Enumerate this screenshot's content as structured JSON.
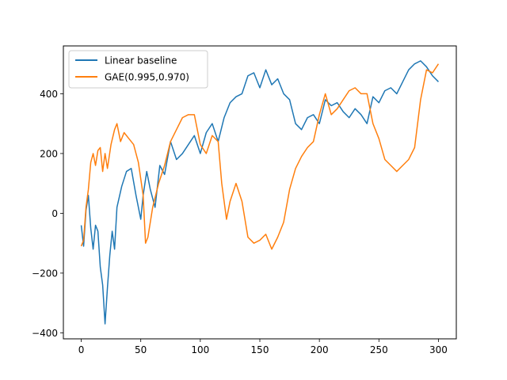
{
  "chart_data": {
    "type": "line",
    "title": "",
    "xlabel": "",
    "ylabel": "",
    "xlim": [
      -15,
      315
    ],
    "ylim": [
      -420,
      560
    ],
    "x_ticks": [
      0,
      50,
      100,
      150,
      200,
      250,
      300
    ],
    "y_ticks": [
      -400,
      -200,
      0,
      200,
      400
    ],
    "x_tick_labels": [
      "0",
      "50",
      "100",
      "150",
      "200",
      "250",
      "300"
    ],
    "y_tick_labels": [
      "−400",
      "−200",
      "0",
      "200",
      "400"
    ],
    "grid": false,
    "legend_position": "top-left",
    "series": [
      {
        "name": "Linear baseline",
        "color": "#1f77b4",
        "x": [
          0,
          2,
          4,
          6,
          8,
          10,
          12,
          14,
          16,
          18,
          20,
          22,
          24,
          26,
          28,
          30,
          34,
          38,
          42,
          46,
          50,
          52,
          55,
          58,
          62,
          66,
          70,
          75,
          80,
          85,
          90,
          95,
          100,
          105,
          110,
          115,
          120,
          125,
          130,
          135,
          140,
          145,
          150,
          155,
          160,
          165,
          170,
          175,
          180,
          185,
          190,
          195,
          200,
          205,
          210,
          215,
          220,
          225,
          230,
          235,
          240,
          245,
          250,
          255,
          260,
          265,
          270,
          275,
          280,
          285,
          290,
          295,
          300
        ],
        "y": [
          -40,
          -110,
          10,
          60,
          -50,
          -120,
          -40,
          -60,
          -180,
          -240,
          -370,
          -250,
          -140,
          -60,
          -120,
          20,
          90,
          140,
          150,
          60,
          -20,
          60,
          140,
          80,
          20,
          160,
          130,
          240,
          180,
          200,
          230,
          260,
          200,
          270,
          300,
          240,
          320,
          370,
          390,
          400,
          460,
          470,
          420,
          480,
          430,
          450,
          400,
          380,
          300,
          280,
          320,
          330,
          300,
          380,
          360,
          370,
          340,
          320,
          350,
          330,
          300,
          390,
          370,
          410,
          420,
          400,
          440,
          480,
          500,
          510,
          490,
          460,
          440
        ]
      },
      {
        "name": "GAE(0.995,0.970)",
        "color": "#ff7f0e",
        "x": [
          0,
          2,
          4,
          6,
          8,
          10,
          12,
          14,
          16,
          18,
          20,
          22,
          25,
          28,
          30,
          33,
          36,
          40,
          44,
          48,
          52,
          54,
          56,
          60,
          65,
          70,
          75,
          80,
          85,
          90,
          95,
          100,
          105,
          110,
          115,
          118,
          122,
          125,
          130,
          135,
          140,
          145,
          150,
          155,
          160,
          165,
          170,
          175,
          180,
          185,
          190,
          195,
          200,
          205,
          210,
          215,
          220,
          225,
          230,
          235,
          240,
          245,
          250,
          255,
          260,
          265,
          270,
          275,
          280,
          285,
          290,
          295,
          300
        ],
        "y": [
          -110,
          -90,
          20,
          80,
          170,
          200,
          160,
          210,
          220,
          140,
          200,
          150,
          230,
          280,
          300,
          240,
          270,
          250,
          230,
          170,
          60,
          -100,
          -80,
          20,
          100,
          160,
          240,
          280,
          320,
          330,
          330,
          230,
          200,
          260,
          240,
          100,
          -20,
          40,
          100,
          40,
          -80,
          -100,
          -90,
          -70,
          -120,
          -80,
          -30,
          80,
          150,
          190,
          220,
          240,
          330,
          400,
          330,
          350,
          380,
          410,
          420,
          400,
          400,
          300,
          250,
          180,
          160,
          140,
          160,
          180,
          220,
          380,
          480,
          470,
          500
        ]
      }
    ]
  }
}
